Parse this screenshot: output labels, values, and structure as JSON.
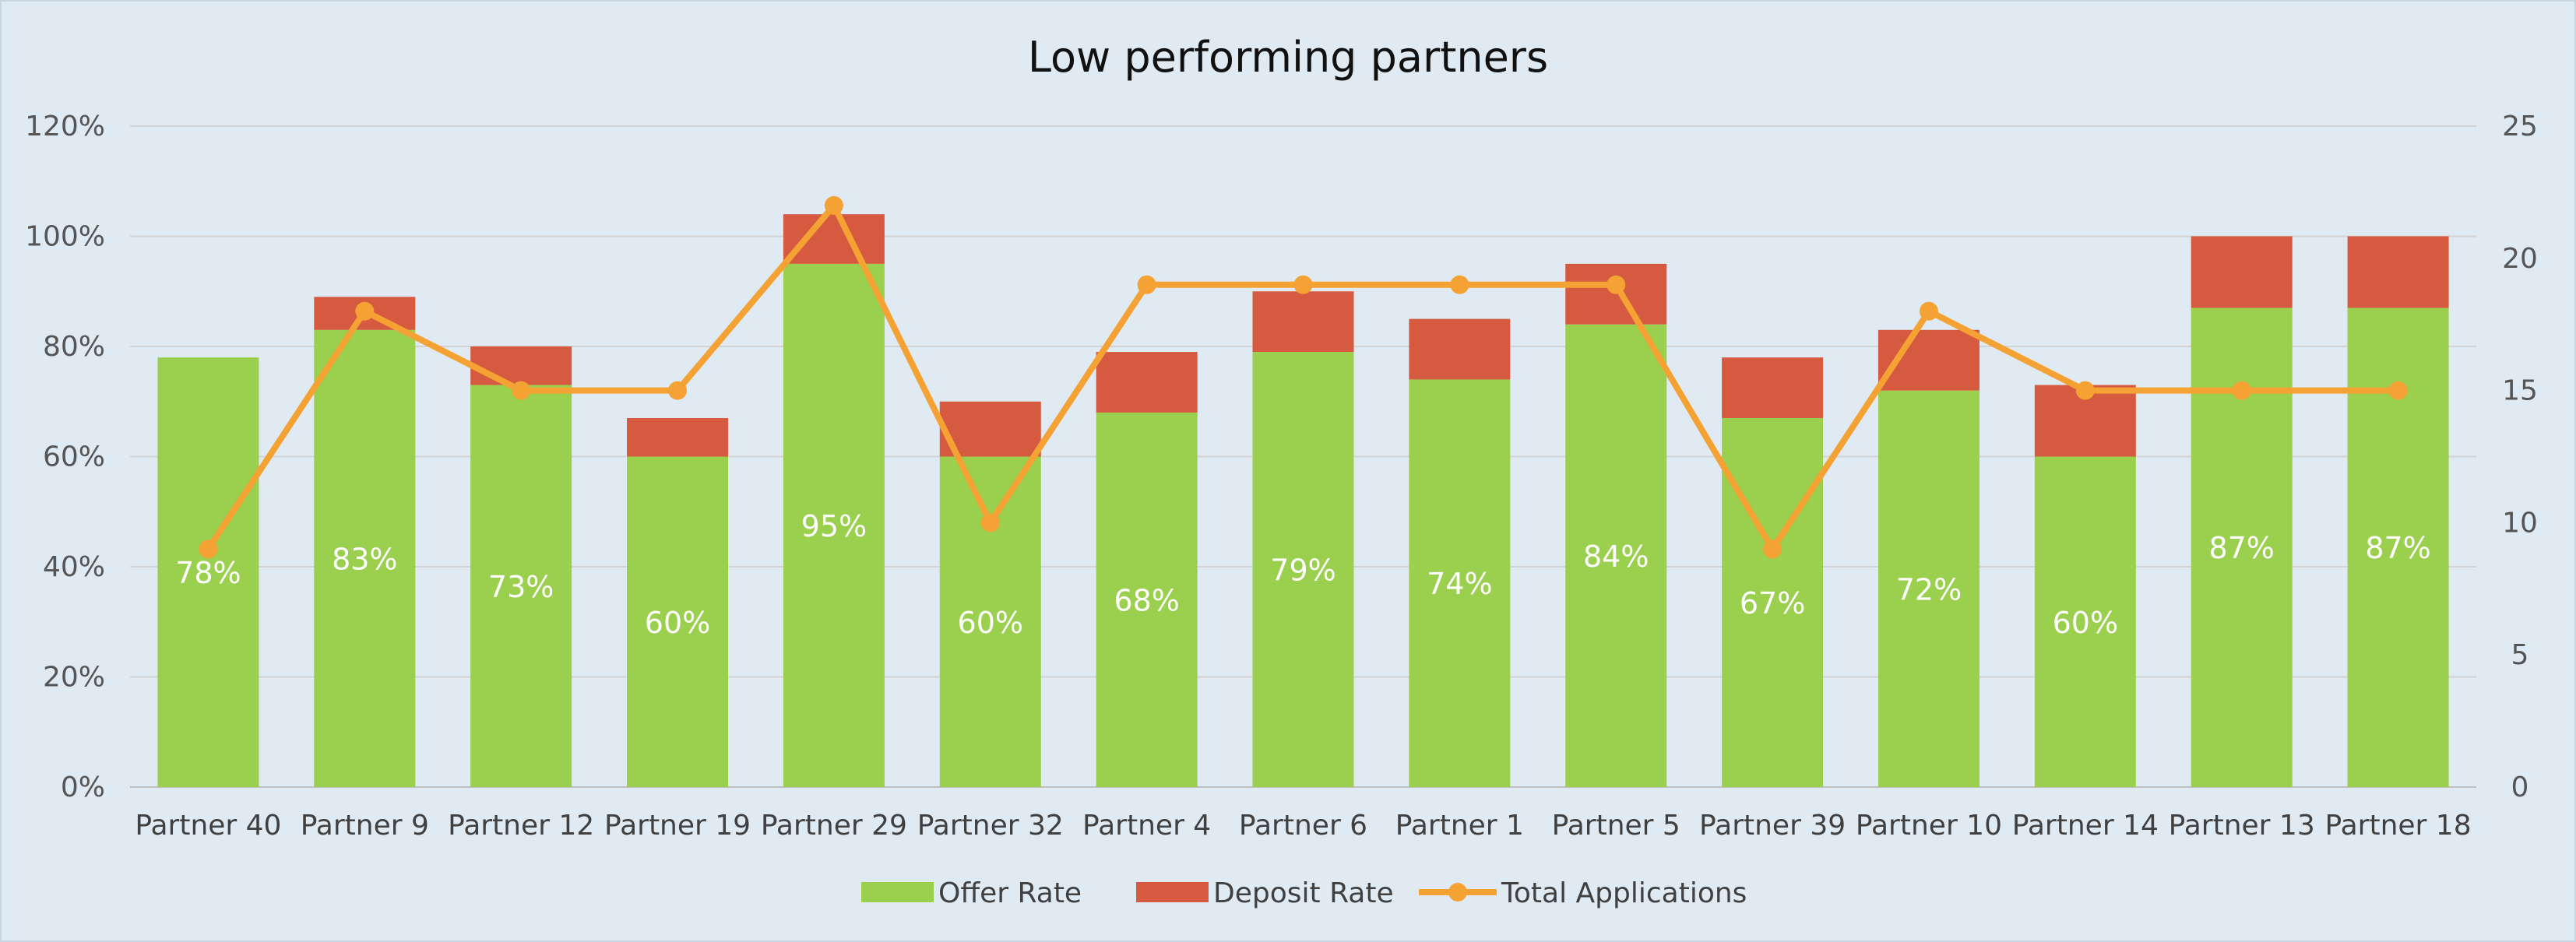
{
  "chart_data": {
    "type": "bar",
    "title": "Low performing partners",
    "categories": [
      "Partner 40",
      "Partner 9",
      "Partner 12",
      "Partner 19",
      "Partner 29",
      "Partner 32",
      "Partner 4",
      "Partner 6",
      "Partner 1",
      "Partner 5",
      "Partner 39",
      "Partner 10",
      "Partner 14",
      "Partner 13",
      "Partner 18"
    ],
    "series": [
      {
        "name": "Offer Rate",
        "kind": "stacked-bar",
        "axis": "left",
        "color": "#9bcf4e",
        "values": [
          78,
          83,
          73,
          60,
          95,
          60,
          68,
          79,
          74,
          84,
          67,
          72,
          60,
          87,
          87
        ],
        "labels": [
          "78%",
          "83%",
          "73%",
          "60%",
          "95%",
          "60%",
          "68%",
          "79%",
          "74%",
          "84%",
          "67%",
          "72%",
          "60%",
          "87%",
          "87%"
        ]
      },
      {
        "name": "Deposit Rate",
        "kind": "stacked-bar",
        "axis": "left",
        "color": "#d55a3f",
        "values": [
          0,
          6,
          7,
          7,
          9,
          10,
          11,
          11,
          11,
          11,
          11,
          11,
          13,
          13,
          13
        ]
      },
      {
        "name": "Total Applications",
        "kind": "line",
        "axis": "right",
        "color": "#f5a234",
        "values": [
          9,
          18,
          15,
          15,
          22,
          10,
          19,
          19,
          19,
          19,
          9,
          18,
          15,
          15,
          15
        ]
      }
    ],
    "y_left": {
      "min": 0,
      "max": 120,
      "step": 20,
      "tick_labels": [
        "0%",
        "20%",
        "40%",
        "60%",
        "80%",
        "100%",
        "120%"
      ]
    },
    "y_right": {
      "min": 0,
      "max": 25,
      "step": 5,
      "tick_labels": [
        "0",
        "5",
        "10",
        "15",
        "20",
        "25"
      ]
    },
    "grid": true,
    "legend": "bottom",
    "legend_items": [
      "Offer Rate",
      "Deposit Rate",
      "Total Applications"
    ]
  }
}
